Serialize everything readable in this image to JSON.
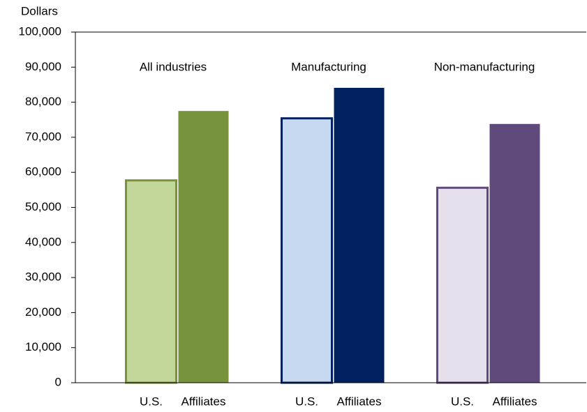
{
  "chart_data": {
    "type": "bar",
    "ylabel": "Dollars",
    "groups": [
      "All industries",
      "Manufacturing",
      "Non-manufacturing"
    ],
    "series": [
      {
        "name": "U.S.",
        "values": [
          58000,
          75700,
          55900
        ],
        "colors": [
          "#c4d79b",
          "#c6d9f1",
          "#e6e0ec"
        ],
        "edge_colors": [
          "#77933c",
          "#002060",
          "#604a7b"
        ]
      },
      {
        "name": "Affiliates",
        "values": [
          77500,
          84100,
          73800
        ],
        "colors": [
          "#77933c",
          "#002060",
          "#604a7b"
        ],
        "edge_colors": [
          "#77933c",
          "#002060",
          "#604a7b"
        ]
      }
    ],
    "ylim": [
      0,
      100000
    ],
    "yticks": [
      0,
      {
        "value": 10000,
        "label": "10,000"
      },
      {
        "value": 20000,
        "label": "20,000"
      },
      {
        "value": 30000,
        "label": "30,000"
      },
      {
        "value": 40000,
        "label": "40,000"
      },
      {
        "value": 50000,
        "label": "50,000"
      },
      {
        "value": 60000,
        "label": "60,000"
      },
      {
        "value": 70000,
        "label": "70,000"
      },
      {
        "value": 80000,
        "label": "80,000"
      },
      {
        "value": 90000,
        "label": "90,000"
      },
      {
        "value": 100000,
        "label": "100,000"
      }
    ],
    "grid": false
  }
}
